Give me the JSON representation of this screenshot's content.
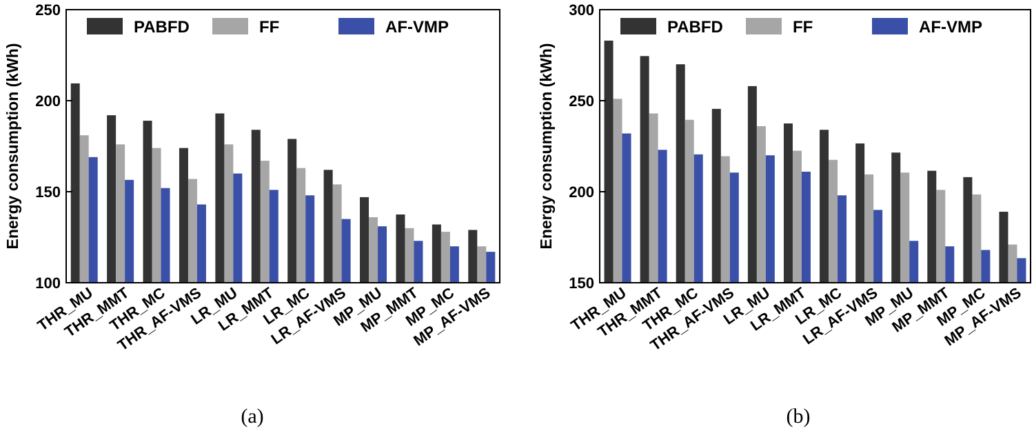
{
  "chart_data": [
    {
      "type": "bar",
      "panel_label": "(a)",
      "ylabel": "Energy consumption (kWh)",
      "xlabel": "",
      "ylim": [
        100,
        250
      ],
      "yticks": [
        100,
        150,
        200,
        250
      ],
      "categories": [
        "THR_MU",
        "THR_MMT",
        "THR_MC",
        "THR_AF-VMS",
        "LR_MU",
        "LR_MMT",
        "LR_MC",
        "LR_AF-VMS",
        "MP_MU",
        "MP_MMT",
        "MP_MC",
        "MP_AF-VMS"
      ],
      "legend_position": "top",
      "grid": false,
      "series": [
        {
          "name": "PABFD",
          "color": "#333333",
          "values": [
            209.5,
            192,
            189,
            174,
            193,
            184,
            179,
            162,
            147,
            137.5,
            132,
            129
          ]
        },
        {
          "name": "FF",
          "color": "#a6a6a6",
          "values": [
            181,
            176,
            174,
            157,
            176,
            167,
            163,
            154,
            136,
            130,
            128,
            120
          ]
        },
        {
          "name": "AF-VMP",
          "color": "#3a50a8",
          "values": [
            169,
            156.5,
            152,
            143,
            160,
            151,
            148,
            135,
            131,
            123,
            120,
            117
          ]
        }
      ]
    },
    {
      "type": "bar",
      "panel_label": "(b)",
      "ylabel": "Energy consumption (kWh)",
      "xlabel": "",
      "ylim": [
        150,
        300
      ],
      "yticks": [
        150,
        200,
        250,
        300
      ],
      "categories": [
        "THR_MU",
        "THR_MMT",
        "THR_MC",
        "THR_AF-VMS",
        "LR_MU",
        "LR_MMT",
        "LR_MC",
        "LR_AF-VMS",
        "MP_MU",
        "MP_MMT",
        "MP_MC",
        "MP_AF-VMS"
      ],
      "legend_position": "top",
      "grid": false,
      "series": [
        {
          "name": "PABFD",
          "color": "#333333",
          "values": [
            283,
            274.5,
            270,
            245.5,
            258,
            237.5,
            234,
            226.5,
            221.5,
            211.5,
            208,
            189
          ]
        },
        {
          "name": "FF",
          "color": "#a6a6a6",
          "values": [
            251,
            243,
            239.5,
            219.5,
            236,
            222.5,
            217.5,
            209.5,
            210.5,
            201,
            198.5,
            171
          ]
        },
        {
          "name": "AF-VMP",
          "color": "#3a50a8",
          "values": [
            232,
            223,
            220.5,
            210.5,
            220,
            211,
            198,
            190,
            173,
            170,
            168,
            163.5
          ]
        }
      ]
    }
  ]
}
